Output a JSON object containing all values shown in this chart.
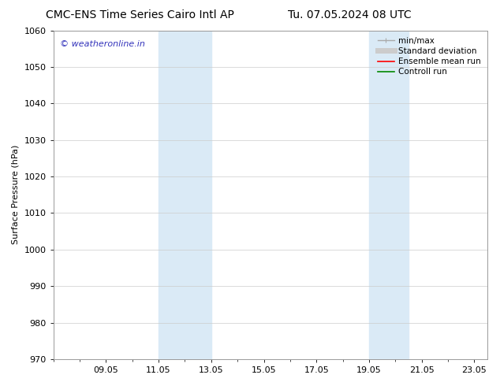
{
  "title": "CMC-ENS Time Series Cairo Intl AP",
  "title_date": "Tu. 07.05.2024 08 UTC",
  "ylabel": "Surface Pressure (hPa)",
  "ylim": [
    970,
    1060
  ],
  "yticks": [
    970,
    980,
    990,
    1000,
    1010,
    1020,
    1030,
    1040,
    1050,
    1060
  ],
  "xtick_positions": [
    9,
    11,
    13,
    15,
    17,
    19,
    21,
    23
  ],
  "xtick_labels": [
    "09.05",
    "11.05",
    "13.05",
    "15.05",
    "17.05",
    "19.05",
    "21.05",
    "23.05"
  ],
  "xlim": [
    7.0,
    23.5
  ],
  "shaded_bands": [
    {
      "x_start": 11.0,
      "x_end": 13.0
    },
    {
      "x_start": 19.0,
      "x_end": 20.5
    }
  ],
  "shaded_color": "#daeaf6",
  "watermark_text": "© weatheronline.in",
  "watermark_color": "#3333bb",
  "legend_items": [
    {
      "label": "min/max",
      "color": "#aaaaaa",
      "lw": 1.0,
      "type": "minmax"
    },
    {
      "label": "Standard deviation",
      "color": "#cccccc",
      "lw": 5,
      "type": "line"
    },
    {
      "label": "Ensemble mean run",
      "color": "#ff0000",
      "lw": 1.2,
      "type": "line"
    },
    {
      "label": "Controll run",
      "color": "#008800",
      "lw": 1.2,
      "type": "line"
    }
  ],
  "background_color": "#ffffff",
  "axis_bg_color": "#ffffff",
  "grid_color": "#cccccc",
  "title_fontsize": 10,
  "title_date_fontsize": 10,
  "ylabel_fontsize": 8,
  "tick_fontsize": 8,
  "legend_fontsize": 7.5,
  "watermark_fontsize": 8
}
